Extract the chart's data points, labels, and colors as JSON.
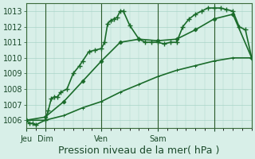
{
  "title": "",
  "xlabel": "Pression niveau de la mer( hPa )",
  "ylabel": "",
  "background_color": "#d8efe8",
  "grid_color": "#aad4c8",
  "line_color": "#1a6b2a",
  "ylim": [
    1005.5,
    1013.5
  ],
  "yticks": [
    1006,
    1007,
    1008,
    1009,
    1010,
    1011,
    1012,
    1013
  ],
  "day_positions": [
    0,
    6,
    24,
    42,
    60
  ],
  "day_labels": [
    "Jeu",
    "Dim",
    "Ven",
    "Sam",
    ""
  ],
  "series1_x": [
    0,
    1,
    2,
    3,
    6,
    7,
    8,
    9,
    10,
    11,
    13,
    15,
    17,
    18,
    20,
    22,
    24,
    25,
    26,
    27,
    28,
    29,
    30,
    31,
    33,
    36,
    38,
    40,
    42,
    44,
    46,
    48,
    50,
    52,
    54,
    56,
    58,
    60,
    62,
    64,
    66,
    68,
    70,
    72
  ],
  "series1_y": [
    1006.0,
    1005.8,
    1005.8,
    1005.7,
    1006.0,
    1006.6,
    1007.4,
    1007.5,
    1007.5,
    1007.8,
    1008.0,
    1009.0,
    1009.5,
    1009.8,
    1010.4,
    1010.5,
    1010.6,
    1011.0,
    1012.2,
    1012.4,
    1012.5,
    1012.6,
    1013.0,
    1013.0,
    1012.1,
    1011.2,
    1011.0,
    1011.0,
    1011.0,
    1010.9,
    1011.0,
    1011.0,
    1012.0,
    1012.5,
    1012.8,
    1013.0,
    1013.2,
    1013.2,
    1013.2,
    1013.1,
    1013.0,
    1012.0,
    1011.8,
    1010.0
  ],
  "series2_x": [
    0,
    6,
    12,
    18,
    24,
    30,
    36,
    42,
    48,
    54,
    60,
    66,
    72
  ],
  "series2_y": [
    1006.0,
    1006.2,
    1007.2,
    1008.5,
    1009.8,
    1011.0,
    1011.2,
    1011.1,
    1011.2,
    1011.8,
    1012.5,
    1012.8,
    1010.0
  ],
  "series3_x": [
    0,
    6,
    12,
    18,
    24,
    30,
    36,
    42,
    48,
    54,
    60,
    66,
    72
  ],
  "series3_y": [
    1006.0,
    1006.0,
    1006.3,
    1006.8,
    1007.2,
    1007.8,
    1008.3,
    1008.8,
    1009.2,
    1009.5,
    1009.8,
    1010.0,
    1010.0
  ],
  "xmin": 0,
  "xmax": 72,
  "marker_size": 3.5,
  "linewidth": 1.2,
  "xlabel_fontsize": 9,
  "tick_fontsize": 7,
  "tick_color": "#1a4a2a",
  "spine_color": "#3a6a3a",
  "vline_color": "#2a5a2a",
  "minor_xtick_step": 3
}
